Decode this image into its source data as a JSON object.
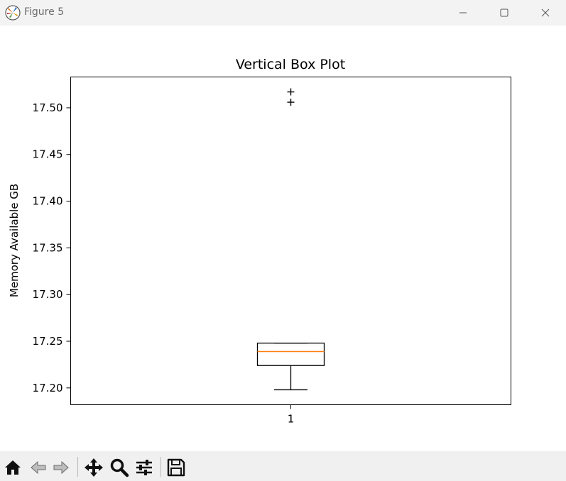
{
  "window": {
    "title": "Figure 5",
    "minimize_icon": "minimize-icon",
    "maximize_icon": "maximize-icon",
    "close_icon": "close-icon"
  },
  "toolbar": {
    "items": [
      "home-icon",
      "back-arrow-icon",
      "forward-arrow-icon",
      "pan-move-icon",
      "zoom-magnifier-icon",
      "configure-subplots-icon",
      "save-floppy-icon"
    ]
  },
  "chart_data": {
    "type": "box",
    "title": "Vertical Box Plot",
    "xlabel": "",
    "ylabel": "Memory Available GB",
    "categories": [
      "1"
    ],
    "ylim": [
      17.182,
      17.533
    ],
    "yticks": [
      17.2,
      17.25,
      17.3,
      17.35,
      17.4,
      17.45,
      17.5
    ],
    "ytick_labels": [
      "17.20",
      "17.25",
      "17.30",
      "17.35",
      "17.40",
      "17.45",
      "17.50"
    ],
    "box": {
      "whisker_low": 17.198,
      "q1": 17.224,
      "median": 17.239,
      "q3": 17.248,
      "whisker_high": 17.248,
      "outliers": [
        17.506,
        17.517
      ]
    },
    "grid": false,
    "colors": {
      "box": "#000000",
      "median": "#ff7f0e"
    }
  }
}
